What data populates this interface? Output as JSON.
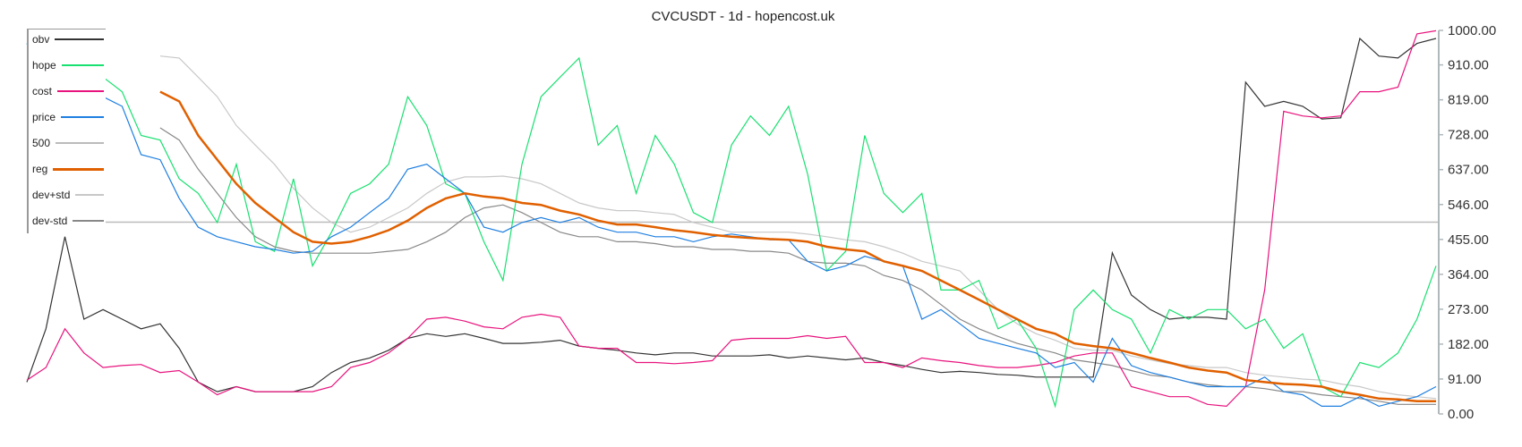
{
  "chart_data": {
    "type": "line",
    "title": "CVCUSDT - 1d - hopencost.uk",
    "ylim": [
      0,
      1000
    ],
    "y_ticks": [
      "1000.00",
      "910.00",
      "819.00",
      "728.00",
      "637.00",
      "546.00",
      "455.00",
      "364.00",
      "273.00",
      "182.00",
      "91.00",
      "0.00"
    ],
    "y_axis_position": "right",
    "legend_position": "top-left",
    "grid": false,
    "series": [
      {
        "name": "obv",
        "color": "#333333",
        "values": [
          83,
          222,
          462,
          247,
          272,
          247,
          222,
          235,
          171,
          83,
          58,
          71,
          58,
          58,
          58,
          71,
          108,
          134,
          146,
          166,
          197,
          209,
          202,
          209,
          197,
          184,
          184,
          187,
          192,
          177,
          171,
          166,
          159,
          154,
          159,
          159,
          151,
          151,
          151,
          154,
          146,
          151,
          146,
          141,
          146,
          134,
          126,
          116,
          108,
          111,
          108,
          103,
          101,
          96,
          96,
          96,
          96,
          420,
          310,
          272,
          247,
          252,
          252,
          247,
          865,
          802,
          815,
          802,
          769,
          772,
          979,
          933,
          928,
          966,
          979
        ]
      },
      {
        "name": "hope",
        "color": "#19e070",
        "values": [
          966,
          903,
          852,
          928,
          878,
          840,
          726,
          714,
          613,
          575,
          499,
          651,
          449,
          424,
          613,
          386,
          474,
          575,
          600,
          651,
          827,
          752,
          600,
          575,
          449,
          348,
          651,
          827,
          878,
          928,
          701,
          752,
          575,
          726,
          651,
          525,
          499,
          701,
          777,
          726,
          802,
          625,
          373,
          424,
          726,
          575,
          525,
          575,
          323,
          323,
          348,
          222,
          247,
          171,
          20,
          272,
          323,
          272,
          247,
          159,
          272,
          247,
          272,
          272,
          222,
          247,
          171,
          209,
          71,
          45,
          134,
          121,
          159,
          247,
          386
        ]
      },
      {
        "name": "cost",
        "color": "#e8137d",
        "values": [
          88,
          121,
          222,
          159,
          121,
          126,
          129,
          108,
          113,
          83,
          50,
          71,
          58,
          58,
          58,
          58,
          71,
          121,
          134,
          159,
          197,
          247,
          252,
          242,
          227,
          222,
          252,
          260,
          252,
          177,
          171,
          171,
          134,
          134,
          131,
          134,
          139,
          192,
          197,
          197,
          197,
          204,
          197,
          202,
          134,
          134,
          121,
          146,
          139,
          134,
          126,
          121,
          121,
          126,
          134,
          151,
          159,
          159,
          71,
          58,
          45,
          45,
          25,
          20,
          71,
          323,
          789,
          777,
          772,
          777,
          840,
          840,
          852,
          991,
          999
        ]
      },
      {
        "name": "price",
        "color": "#1e7fe0",
        "values": [
          966,
          878,
          827,
          890,
          827,
          802,
          676,
          663,
          562,
          487,
          462,
          449,
          436,
          429,
          419,
          424,
          462,
          487,
          525,
          562,
          638,
          651,
          613,
          575,
          487,
          474,
          499,
          512,
          499,
          512,
          487,
          474,
          474,
          462,
          462,
          449,
          462,
          469,
          462,
          454,
          454,
          398,
          373,
          386,
          411,
          398,
          386,
          247,
          272,
          235,
          197,
          184,
          171,
          159,
          121,
          134,
          83,
          197,
          126,
          108,
          96,
          83,
          71,
          71,
          71,
          96,
          58,
          50,
          20,
          20,
          45,
          20,
          33,
          45,
          71
        ]
      },
      {
        "name": "500",
        "color": "#bbbbbb",
        "constant": 500
      },
      {
        "name": "reg",
        "color": "#e06000",
        "start_index": 7,
        "values": [
          840,
          815,
          726,
          663,
          600,
          550,
          512,
          474,
          449,
          444,
          449,
          462,
          479,
          504,
          537,
          562,
          575,
          567,
          562,
          550,
          545,
          530,
          520,
          504,
          494,
          494,
          487,
          479,
          474,
          467,
          462,
          459,
          456,
          454,
          449,
          436,
          429,
          424,
          398,
          386,
          373,
          348,
          323,
          298,
          272,
          247,
          222,
          209,
          184,
          177,
          171,
          159,
          146,
          134,
          121,
          113,
          108,
          88,
          83,
          78,
          76,
          71,
          58,
          50,
          40,
          38,
          33,
          33
        ]
      },
      {
        "name": "dev+std",
        "color": "#c8c8c8",
        "start_index": 7,
        "values": [
          933,
          928,
          878,
          827,
          752,
          701,
          651,
          588,
          537,
          499,
          474,
          487,
          512,
          537,
          575,
          605,
          618,
          618,
          620,
          613,
          600,
          575,
          550,
          537,
          530,
          530,
          525,
          520,
          499,
          487,
          474,
          474,
          474,
          474,
          469,
          462,
          454,
          449,
          436,
          419,
          398,
          386,
          373,
          323,
          272,
          235,
          209,
          192,
          171,
          166,
          166,
          151,
          141,
          131,
          126,
          121,
          121,
          108,
          101,
          96,
          91,
          88,
          78,
          71,
          58,
          50,
          45,
          40
        ]
      },
      {
        "name": "dev-std",
        "color": "#888888",
        "start_index": 7,
        "values": [
          746,
          714,
          638,
          575,
          512,
          462,
          436,
          424,
          419,
          419,
          419,
          419,
          424,
          429,
          449,
          474,
          512,
          537,
          545,
          525,
          499,
          474,
          462,
          462,
          449,
          449,
          444,
          436,
          436,
          429,
          429,
          424,
          424,
          419,
          398,
          393,
          393,
          386,
          361,
          348,
          323,
          285,
          247,
          222,
          202,
          184,
          171,
          159,
          141,
          134,
          126,
          113,
          101,
          96,
          83,
          76,
          71,
          71,
          66,
          58,
          58,
          50,
          45,
          40,
          33,
          25,
          25,
          25
        ]
      }
    ]
  }
}
